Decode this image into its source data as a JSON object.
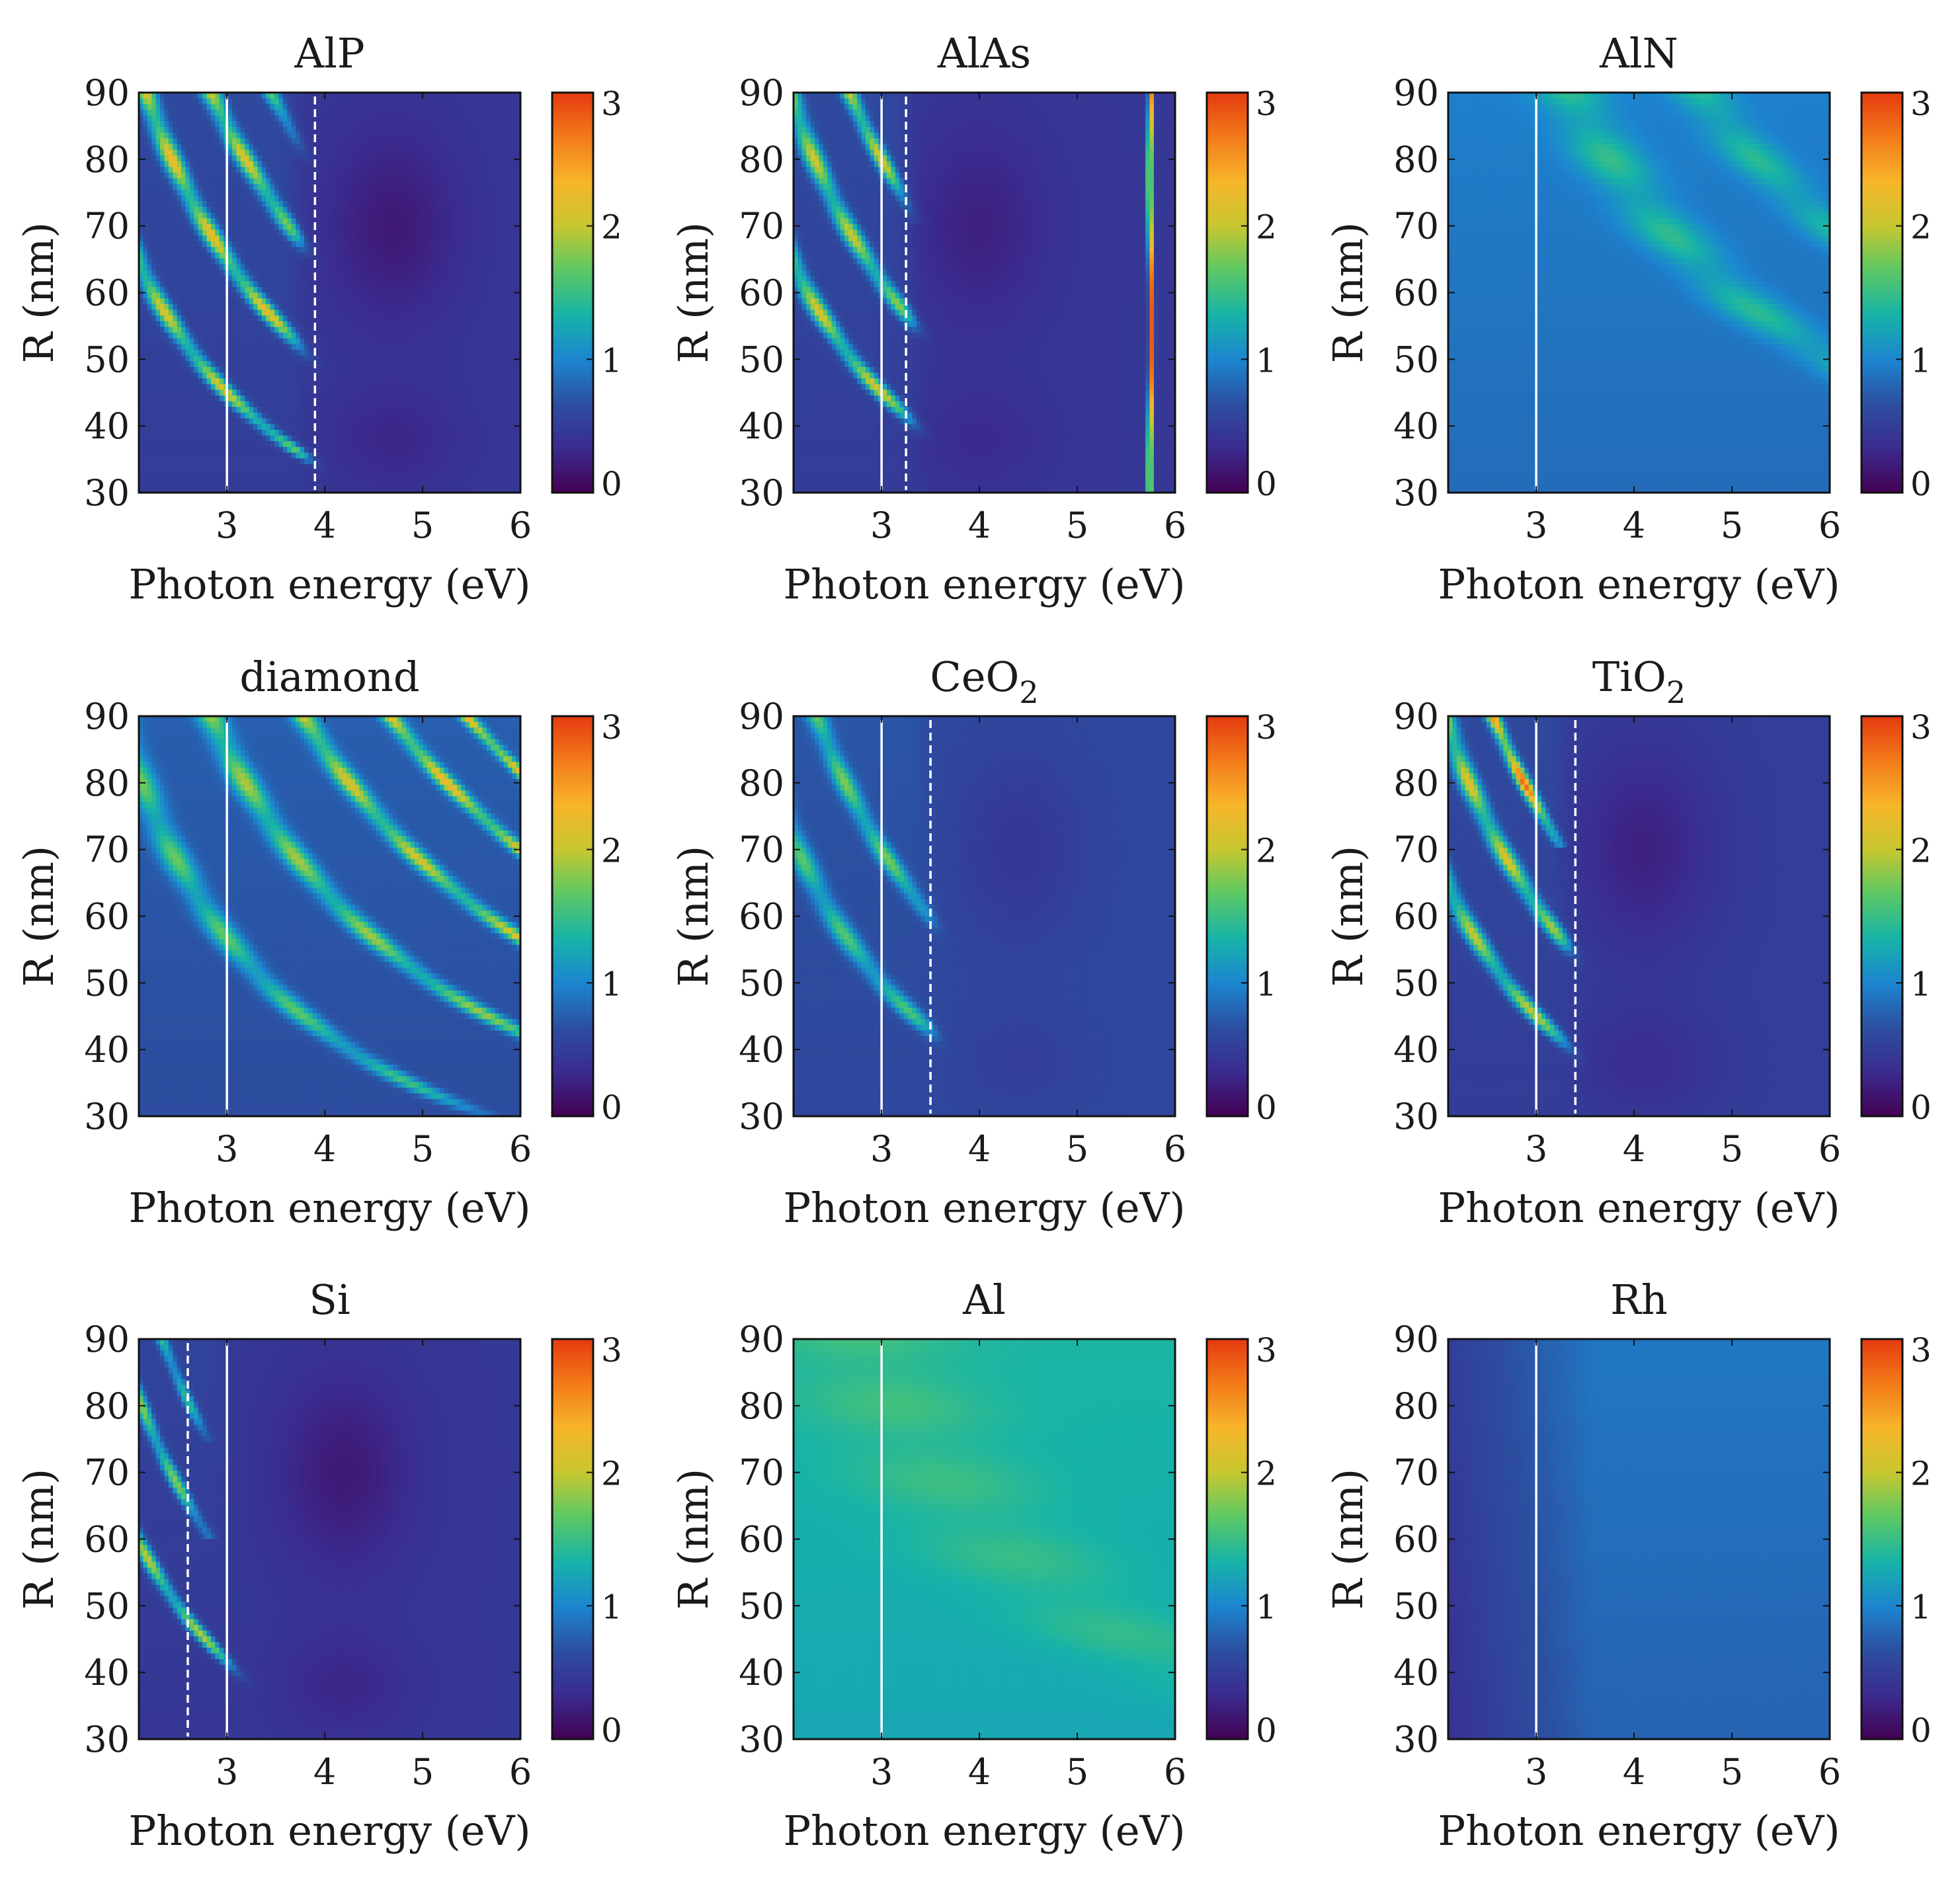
{
  "figure": {
    "colorbar_ticks": [
      "0",
      "1",
      "2",
      "3"
    ],
    "colormap": [
      "#440154",
      "#3b2b8f",
      "#2c4fa0",
      "#1c86d0",
      "#17b3a8",
      "#5cc864",
      "#c8c72f",
      "#f7b52a",
      "#f37a19",
      "#e53a10"
    ]
  },
  "chart_data": [
    {
      "type": "heatmap",
      "title": "AlP",
      "title_sub": "",
      "xlabel": "Photon energy (eV)",
      "ylabel": "R (nm)",
      "xlim": [
        2.1,
        6
      ],
      "ylim": [
        30,
        90
      ],
      "xticks": [
        "3",
        "4",
        "5",
        "6"
      ],
      "yticks": [
        "30",
        "40",
        "50",
        "60",
        "70",
        "80",
        "90"
      ],
      "color_range": [
        0,
        3
      ],
      "background_level": 0.55,
      "solid_line_x": 3.0,
      "dashed_line_x": 3.9,
      "region_cut": {
        "e0": 3.75,
        "slope": 0.0025,
        "level": 0.45,
        "dark": {
          "e": 4.7,
          "r": 70,
          "amp": 0.25
        }
      },
      "bands": [
        {
          "k": 135,
          "width": 0.1,
          "amp": 1.6,
          "min_r": 30
        },
        {
          "k": 195,
          "width": 0.1,
          "amp": 1.7,
          "min_r": 30
        },
        {
          "k": 255,
          "width": 0.1,
          "amp": 1.6,
          "min_r": 35
        },
        {
          "k": 310,
          "width": 0.08,
          "amp": 1.2,
          "min_r": 60
        }
      ]
    },
    {
      "type": "heatmap",
      "title": "AlAs",
      "title_sub": "",
      "xlabel": "Photon energy (eV)",
      "ylabel": "R (nm)",
      "xlim": [
        2.1,
        6
      ],
      "ylim": [
        30,
        90
      ],
      "xticks": [
        "3",
        "4",
        "5",
        "6"
      ],
      "yticks": [
        "30",
        "40",
        "50",
        "60",
        "70",
        "80",
        "90"
      ],
      "color_range": [
        0,
        3
      ],
      "background_level": 0.55,
      "solid_line_x": 3.0,
      "dashed_line_x": 3.25,
      "region_cut": {
        "e0": 3.3,
        "slope": 0.002,
        "level": 0.45,
        "dark": {
          "e": 4.0,
          "r": 70,
          "amp": 0.2
        }
      },
      "bands": [
        {
          "k": 135,
          "width": 0.1,
          "amp": 1.6,
          "min_r": 30
        },
        {
          "k": 185,
          "width": 0.1,
          "amp": 1.5,
          "min_r": 35
        },
        {
          "k": 240,
          "width": 0.08,
          "amp": 1.6,
          "min_r": 70
        }
      ],
      "vertical_peak": {
        "e": 5.75,
        "width": 0.025,
        "amp": 2.4
      }
    },
    {
      "type": "heatmap",
      "title": "AlN",
      "title_sub": "",
      "xlabel": "Photon energy (eV)",
      "ylabel": "R (nm)",
      "xlim": [
        2.1,
        6
      ],
      "ylim": [
        30,
        90
      ],
      "xticks": [
        "3",
        "4",
        "5",
        "6"
      ],
      "yticks": [
        "30",
        "40",
        "50",
        "60",
        "70",
        "80",
        "90"
      ],
      "color_range": [
        0,
        3
      ],
      "background_level": 0.9,
      "solid_line_x": 3.0,
      "bands": [
        {
          "k": 300,
          "width": 0.35,
          "amp": 0.55,
          "min_r": 30
        },
        {
          "k": 420,
          "width": 0.3,
          "amp": 0.5,
          "min_r": 45
        }
      ]
    },
    {
      "type": "heatmap",
      "title": "diamond",
      "title_sub": "",
      "xlabel": "Photon energy (eV)",
      "ylabel": "R (nm)",
      "xlim": [
        2.1,
        6
      ],
      "ylim": [
        30,
        90
      ],
      "xticks": [
        "3",
        "4",
        "5",
        "6"
      ],
      "yticks": [
        "30",
        "40",
        "50",
        "60",
        "70",
        "80",
        "90"
      ],
      "color_range": [
        0,
        3
      ],
      "background_level": 0.7,
      "solid_line_x": 3.0,
      "bands": [
        {
          "k": 170,
          "width": 0.15,
          "amp": 1.0,
          "min_r": 30
        },
        {
          "k": 255,
          "width": 0.14,
          "amp": 1.2,
          "min_r": 30
        },
        {
          "k": 340,
          "width": 0.12,
          "amp": 1.4,
          "min_r": 30
        },
        {
          "k": 420,
          "width": 0.1,
          "amp": 1.6,
          "min_r": 55
        },
        {
          "k": 490,
          "width": 0.08,
          "amp": 1.8,
          "min_r": 70
        }
      ]
    },
    {
      "type": "heatmap",
      "title": "CeO",
      "title_sub": "2",
      "xlabel": "Photon energy (eV)",
      "ylabel": "R (nm)",
      "xlim": [
        2.1,
        6
      ],
      "ylim": [
        30,
        90
      ],
      "xticks": [
        "3",
        "4",
        "5",
        "6"
      ],
      "yticks": [
        "30",
        "40",
        "50",
        "60",
        "70",
        "80",
        "90"
      ],
      "color_range": [
        0,
        3
      ],
      "background_level": 0.65,
      "solid_line_x": 3.0,
      "dashed_line_x": 3.5,
      "region_cut": {
        "e0": 3.5,
        "slope": 0.002,
        "level": 0.6,
        "dark": {
          "e": 4.4,
          "r": 70,
          "amp": 0.15
        }
      },
      "bands": [
        {
          "k": 150,
          "width": 0.12,
          "amp": 1.0,
          "min_r": 35
        },
        {
          "k": 210,
          "width": 0.1,
          "amp": 1.1,
          "min_r": 55
        }
      ]
    },
    {
      "type": "heatmap",
      "title": "TiO",
      "title_sub": "2",
      "xlabel": "Photon energy (eV)",
      "ylabel": "R (nm)",
      "xlim": [
        2.1,
        6
      ],
      "ylim": [
        30,
        90
      ],
      "xticks": [
        "3",
        "4",
        "5",
        "6"
      ],
      "yticks": [
        "30",
        "40",
        "50",
        "60",
        "70",
        "80",
        "90"
      ],
      "color_range": [
        0,
        3
      ],
      "background_level": 0.55,
      "solid_line_x": 3.0,
      "dashed_line_x": 3.4,
      "region_cut": {
        "e0": 3.3,
        "slope": 0.002,
        "level": 0.5,
        "dark": {
          "e": 4.1,
          "r": 70,
          "amp": 0.25
        }
      },
      "bands": [
        {
          "k": 135,
          "width": 0.1,
          "amp": 1.5,
          "min_r": 30
        },
        {
          "k": 185,
          "width": 0.1,
          "amp": 1.6,
          "min_r": 40
        },
        {
          "k": 230,
          "width": 0.07,
          "amp": 2.2,
          "min_r": 70
        }
      ]
    },
    {
      "type": "heatmap",
      "title": "Si",
      "title_sub": "",
      "xlabel": "Photon energy (eV)",
      "ylabel": "R (nm)",
      "xlim": [
        2.1,
        6
      ],
      "ylim": [
        30,
        90
      ],
      "xticks": [
        "3",
        "4",
        "5",
        "6"
      ],
      "yticks": [
        "30",
        "40",
        "50",
        "60",
        "70",
        "80",
        "90"
      ],
      "color_range": [
        0,
        3
      ],
      "background_level": 0.5,
      "solid_line_x": 3.0,
      "dashed_line_x": 2.6,
      "region_cut": {
        "e0": 3.05,
        "slope": 0.002,
        "level": 0.45,
        "dark": {
          "e": 4.2,
          "r": 70,
          "amp": 0.25
        }
      },
      "bands": [
        {
          "k": 125,
          "width": 0.08,
          "amp": 1.5,
          "min_r": 30
        },
        {
          "k": 170,
          "width": 0.07,
          "amp": 1.3,
          "min_r": 60
        },
        {
          "k": 210,
          "width": 0.06,
          "amp": 1.0,
          "min_r": 75
        }
      ]
    },
    {
      "type": "heatmap",
      "title": "Al",
      "title_sub": "",
      "xlabel": "Photon energy (eV)",
      "ylabel": "R (nm)",
      "xlim": [
        2.1,
        6
      ],
      "ylim": [
        30,
        90
      ],
      "xticks": [
        "3",
        "4",
        "5",
        "6"
      ],
      "yticks": [
        "30",
        "40",
        "50",
        "60",
        "70",
        "80",
        "90"
      ],
      "color_range": [
        0,
        3
      ],
      "background_level": 1.3,
      "solid_line_x": 3.0,
      "bands": [
        {
          "k": 250,
          "width": 0.9,
          "amp": 0.2,
          "min_r": 30
        }
      ]
    },
    {
      "type": "heatmap",
      "title": "Rh",
      "title_sub": "",
      "xlabel": "Photon energy (eV)",
      "ylabel": "R (nm)",
      "xlim": [
        2.1,
        6
      ],
      "ylim": [
        30,
        90
      ],
      "xticks": [
        "3",
        "4",
        "5",
        "6"
      ],
      "yticks": [
        "30",
        "40",
        "50",
        "60",
        "70",
        "80",
        "90"
      ],
      "color_range": [
        0,
        3
      ],
      "background_level": 0.85,
      "solid_line_x": 3.0,
      "left_dim": {
        "e_end": 3.6,
        "amp": 0.4
      },
      "bands": []
    }
  ]
}
